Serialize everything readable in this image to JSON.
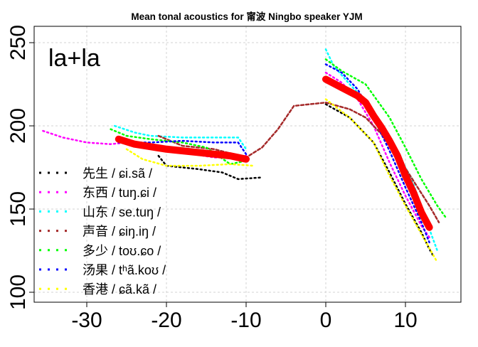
{
  "chart_data": {
    "type": "line",
    "title": "Mean tonal acoustics for 甯波 Ningbo speaker YJM",
    "annotation": "la+la",
    "xlabel": "",
    "ylabel": "",
    "xlim": [
      -37,
      17
    ],
    "ylim": [
      93,
      259
    ],
    "xticks": [
      "-30",
      "-20",
      "-10",
      "0",
      "10"
    ],
    "xtick_values": [
      -30,
      -20,
      -10,
      0,
      10
    ],
    "yticks": [
      "100",
      "150",
      "200",
      "250"
    ],
    "ytick_values": [
      100,
      150,
      200,
      250
    ],
    "grid": true,
    "legend_position": "bottom-left",
    "series": [
      {
        "name": "先生 / ɕi.sã /",
        "color": "#000000",
        "segments": [
          [
            [
              -21,
              182
            ],
            [
              -20,
              176
            ],
            [
              -16,
              174
            ],
            [
              -13,
              172
            ],
            [
              -11,
              168
            ],
            [
              -8,
              169
            ]
          ],
          [
            [
              0,
              213
            ],
            [
              3,
              205
            ],
            [
              6,
              190
            ],
            [
              8,
              172
            ],
            [
              10,
              153
            ],
            [
              12,
              136
            ],
            [
              13,
              126
            ],
            [
              13.6,
              121
            ]
          ]
        ]
      },
      {
        "name": "东西 / tuŋ.ɕi /",
        "color": "#ff00ff",
        "segments": [
          [
            [
              -35.5,
              197
            ],
            [
              -33,
              193
            ],
            [
              -30,
              190
            ],
            [
              -27,
              189
            ],
            [
              -25,
              190
            ],
            [
              -22,
              187
            ],
            [
              -18,
              184
            ],
            [
              -14,
              181
            ],
            [
              -11,
              181
            ],
            [
              -10,
              182
            ]
          ],
          [
            [
              0,
              232
            ],
            [
              2,
              226
            ],
            [
              4,
              216
            ],
            [
              6,
              200
            ],
            [
              8,
              178
            ],
            [
              10,
              158
            ],
            [
              12,
              140
            ],
            [
              13,
              133
            ]
          ]
        ]
      },
      {
        "name": "山东 / se.tuŋ /",
        "color": "#00ffff",
        "segments": [
          [
            [
              -26.5,
              200
            ],
            [
              -24,
              196
            ],
            [
              -22,
              194
            ],
            [
              -18,
              193
            ],
            [
              -14,
              193
            ],
            [
              -11,
              193
            ],
            [
              -10,
              186
            ]
          ],
          [
            [
              0,
              246
            ],
            [
              1,
              236
            ],
            [
              3,
              225
            ],
            [
              5,
              215
            ],
            [
              7,
              200
            ],
            [
              9,
              185
            ],
            [
              11,
              165
            ],
            [
              13,
              138
            ],
            [
              14,
              125
            ]
          ]
        ]
      },
      {
        "name": "声音 / ɕiŋ.iŋ /",
        "color": "#a52a2a",
        "segments": [
          [
            [
              -21,
              194
            ],
            [
              -18,
              188
            ],
            [
              -14,
              186
            ],
            [
              -10,
              181
            ],
            [
              -8,
              187
            ],
            [
              -6,
              198
            ],
            [
              -4,
              212
            ],
            [
              0,
              214
            ],
            [
              3,
              210
            ],
            [
              5,
              205
            ],
            [
              7,
              195
            ],
            [
              9,
              182
            ],
            [
              11,
              167
            ],
            [
              13,
              152
            ],
            [
              14.2,
              142
            ]
          ]
        ]
      },
      {
        "name": "多少 / toʊ.ɕo /",
        "color": "#00ff00",
        "segments": [
          [
            [
              -27,
              198
            ],
            [
              -25,
              194
            ],
            [
              -22,
              192
            ],
            [
              -18,
              190
            ],
            [
              -15,
              187
            ],
            [
              -12,
              177
            ],
            [
              -10,
              179
            ]
          ],
          [
            [
              0,
              240
            ],
            [
              2,
              233
            ],
            [
              5,
              225
            ],
            [
              8,
              205
            ],
            [
              10,
              187
            ],
            [
              12,
              168
            ],
            [
              14,
              152
            ],
            [
              15.2,
              144
            ]
          ]
        ]
      },
      {
        "name": "汤果 / tʰã.koʊ /",
        "color": "#0000ff",
        "segments": [
          [
            [
              -26,
              190
            ],
            [
              -22,
              190
            ],
            [
              -18,
              191
            ],
            [
              -14,
              190
            ],
            [
              -11,
              190
            ],
            [
              -10,
              183
            ]
          ],
          [
            [
              0,
              237
            ],
            [
              2,
              232
            ],
            [
              4,
              222
            ],
            [
              6,
              205
            ],
            [
              8,
              185
            ],
            [
              10,
              163
            ],
            [
              12,
              142
            ],
            [
              13,
              130
            ]
          ]
        ]
      },
      {
        "name": "香港 / ɕã.kã /",
        "color": "#ffff00",
        "segments": [
          [
            [
              -25,
              186
            ],
            [
              -23,
              180
            ],
            [
              -20,
              176
            ],
            [
              -16,
              176
            ],
            [
              -12,
              177
            ],
            [
              -9,
              176
            ]
          ],
          [
            [
              0,
              216
            ],
            [
              3,
              205
            ],
            [
              6,
              190
            ],
            [
              8,
              170
            ],
            [
              10,
              152
            ],
            [
              12,
              135
            ],
            [
              14,
              118
            ]
          ]
        ]
      },
      {
        "name": "mean",
        "color": "#ff0000",
        "in_legend": false,
        "segments": [
          [
            [
              -26,
              192
            ],
            [
              -24,
              189
            ],
            [
              -20,
              186
            ],
            [
              -16,
              184
            ],
            [
              -12,
              182
            ],
            [
              -10,
              180
            ]
          ],
          [
            [
              0,
              228
            ],
            [
              2,
              223
            ],
            [
              4,
              218
            ],
            [
              5,
              214
            ],
            [
              6,
              206
            ],
            [
              7,
              199
            ],
            [
              8,
              191
            ],
            [
              9,
              182
            ],
            [
              10,
              170
            ],
            [
              11,
              160
            ],
            [
              12,
              148
            ],
            [
              13,
              139
            ]
          ]
        ]
      }
    ]
  }
}
